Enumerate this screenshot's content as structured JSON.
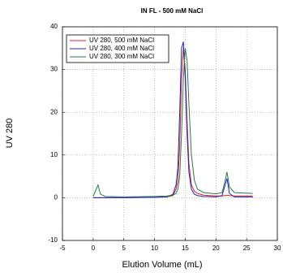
{
  "chart_data": {
    "type": "line",
    "title": "IN FL - 500 mM NaCl",
    "x_label": "Elution Volume (mL)",
    "y_label": "UV 280",
    "x": [
      0,
      0.5,
      0.8,
      1.2,
      2,
      5,
      10,
      12,
      13,
      13.5,
      13.8,
      14.1,
      14.4,
      14.7,
      15,
      15.3,
      15.6,
      16,
      16.5,
      17,
      18,
      20,
      21,
      21.5,
      21.8,
      22.2,
      23,
      26
    ],
    "series": [
      {
        "name": "UV 280, 500 mM NaCl",
        "color": "#e02020",
        "values": [
          0,
          0,
          0,
          0,
          0,
          0,
          0.1,
          0.2,
          0.5,
          2,
          4,
          12,
          28,
          35,
          30,
          18,
          8,
          3,
          1.5,
          1,
          0.6,
          0.4,
          0.4,
          0.5,
          0.6,
          0.5,
          0.4,
          0.4
        ]
      },
      {
        "name": "UV 280, 400 mM NaCl",
        "color": "#2020d0",
        "values": [
          0,
          0,
          0,
          0,
          0,
          0,
          0.1,
          0.2,
          0.8,
          3,
          7,
          20,
          35,
          36.5,
          28,
          15,
          6,
          2,
          0.8,
          0.5,
          0.3,
          0.2,
          0.5,
          3,
          4.5,
          1,
          0.2,
          0.2
        ]
      },
      {
        "name": "UV 280, 300 mM NaCl",
        "color": "#208040",
        "values": [
          0.3,
          2,
          3,
          0.8,
          0.3,
          0.2,
          0.3,
          0.4,
          0.6,
          1,
          2,
          5,
          15,
          28,
          35,
          32,
          22,
          10,
          4,
          2,
          1.2,
          0.9,
          1.2,
          4,
          6,
          2.5,
          1.2,
          1
        ]
      }
    ],
    "xlim": [
      -5,
      30
    ],
    "xticks": [
      -5,
      0,
      5,
      10,
      15,
      20,
      25,
      30
    ],
    "ylim": [
      -10,
      40
    ],
    "yticks": [
      -10,
      0,
      10,
      20,
      30,
      40
    ],
    "grid": true,
    "legend": "upper left"
  }
}
